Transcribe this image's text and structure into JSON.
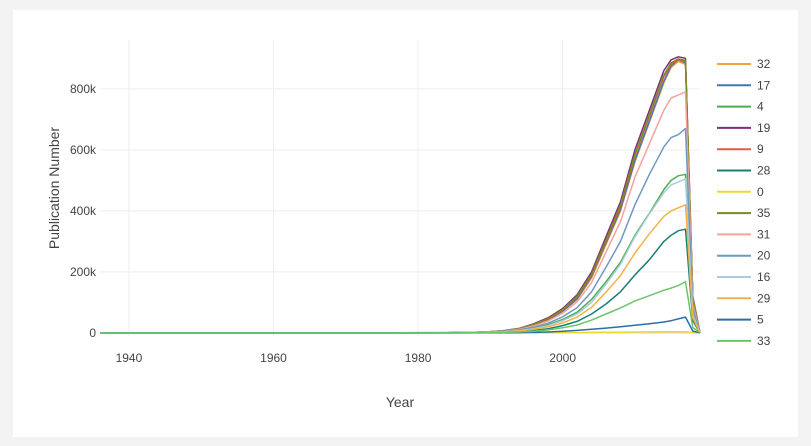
{
  "chart_data": {
    "type": "line",
    "title": "",
    "xlabel": "Year",
    "ylabel": "Publication Number",
    "xlim": [
      1936,
      2019
    ],
    "ylim": [
      -10000,
      960000
    ],
    "x_ticks": [
      1940,
      1960,
      1980,
      2000
    ],
    "y_ticks": [
      0,
      200000,
      400000,
      600000,
      800000
    ],
    "y_tick_labels": [
      "0",
      "200k",
      "400k",
      "600k",
      "800k"
    ],
    "grid": true,
    "legend_position": "right",
    "x": [
      1936,
      1950,
      1970,
      1984,
      1988,
      1990,
      1992,
      1994,
      1996,
      1998,
      2000,
      2002,
      2004,
      2006,
      2008,
      2010,
      2012,
      2014,
      2015,
      2016,
      2017,
      2018,
      2019
    ],
    "series": [
      {
        "name": "32",
        "color": "#f2a23a",
        "values": [
          0,
          0,
          0,
          900,
          2000,
          4000,
          7000,
          13000,
          25000,
          42000,
          70000,
          110000,
          180000,
          290000,
          400000,
          560000,
          690000,
          820000,
          870000,
          890000,
          880000,
          110000,
          0
        ]
      },
      {
        "name": "17",
        "color": "#3f78b4",
        "values": [
          0,
          0,
          0,
          900,
          2000,
          4000,
          7000,
          13000,
          26000,
          43000,
          72000,
          112000,
          185000,
          295000,
          405000,
          565000,
          695000,
          825000,
          875000,
          895000,
          885000,
          105000,
          0
        ]
      },
      {
        "name": "4",
        "color": "#4fae50",
        "values": [
          0,
          0,
          0,
          600,
          1300,
          2800,
          5000,
          9000,
          16000,
          27000,
          44000,
          68000,
          110000,
          168000,
          232000,
          320000,
          392000,
          470000,
          500000,
          515000,
          520000,
          60000,
          0
        ]
      },
      {
        "name": "19",
        "color": "#7b2e7f",
        "values": [
          0,
          0,
          0,
          1000,
          2300,
          4500,
          8000,
          15000,
          30000,
          50000,
          80000,
          125000,
          200000,
          315000,
          430000,
          600000,
          730000,
          860000,
          895000,
          905000,
          900000,
          120000,
          0
        ]
      },
      {
        "name": "9",
        "color": "#e15a4a",
        "values": [
          0,
          0,
          0,
          900,
          2100,
          4200,
          7500,
          14000,
          27000,
          45000,
          75000,
          118000,
          190000,
          300000,
          415000,
          580000,
          710000,
          840000,
          880000,
          895000,
          890000,
          112000,
          0
        ]
      },
      {
        "name": "28",
        "color": "#1a7f72",
        "values": [
          0,
          0,
          0,
          300,
          700,
          1500,
          2600,
          4500,
          8000,
          14000,
          24000,
          38000,
          62000,
          95000,
          135000,
          190000,
          240000,
          300000,
          320000,
          335000,
          340000,
          40000,
          0
        ]
      },
      {
        "name": "0",
        "color": "#eed92a",
        "values": [
          0,
          0,
          0,
          20,
          50,
          100,
          200,
          300,
          500,
          700,
          1000,
          1300,
          1700,
          2100,
          2500,
          3000,
          3400,
          3800,
          4000,
          4100,
          4200,
          600,
          0
        ]
      },
      {
        "name": "35",
        "color": "#7e8b1a",
        "values": [
          0,
          0,
          0,
          950,
          2200,
          4300,
          7800,
          14500,
          28000,
          47000,
          77000,
          120000,
          193000,
          305000,
          420000,
          585000,
          715000,
          845000,
          885000,
          898000,
          893000,
          115000,
          0
        ]
      },
      {
        "name": "31",
        "color": "#f3a49c",
        "values": [
          0,
          0,
          0,
          800,
          1800,
          3600,
          6500,
          12000,
          23000,
          39000,
          65000,
          102000,
          165000,
          265000,
          365000,
          510000,
          620000,
          730000,
          770000,
          780000,
          790000,
          95000,
          0
        ]
      },
      {
        "name": "20",
        "color": "#6f98c6",
        "values": [
          0,
          0,
          0,
          650,
          1500,
          3000,
          5500,
          10000,
          19000,
          32000,
          53000,
          83000,
          135000,
          215000,
          300000,
          420000,
          520000,
          610000,
          640000,
          650000,
          670000,
          80000,
          0
        ]
      },
      {
        "name": "16",
        "color": "#a9cbe3",
        "values": [
          0,
          0,
          0,
          500,
          1100,
          2300,
          4000,
          7500,
          14000,
          24000,
          40000,
          62000,
          100000,
          160000,
          225000,
          315000,
          390000,
          460000,
          485000,
          495000,
          505000,
          58000,
          0
        ]
      },
      {
        "name": "29",
        "color": "#f5b24a",
        "values": [
          0,
          0,
          0,
          450,
          1000,
          2000,
          3500,
          6500,
          12000,
          20000,
          33000,
          52000,
          84000,
          134000,
          188000,
          262000,
          325000,
          382000,
          400000,
          410000,
          420000,
          50000,
          0
        ]
      },
      {
        "name": "5",
        "color": "#2c6ea8",
        "values": [
          0,
          0,
          0,
          60,
          140,
          300,
          550,
          1000,
          1900,
          3200,
          5300,
          8200,
          12000,
          16000,
          20000,
          25000,
          30000,
          36000,
          40000,
          46000,
          52000,
          6000,
          0
        ]
      },
      {
        "name": "33",
        "color": "#6cc56a",
        "values": [
          0,
          0,
          0,
          200,
          450,
          900,
          1700,
          3100,
          5800,
          10000,
          17000,
          26000,
          42000,
          62000,
          82000,
          105000,
          122000,
          140000,
          147000,
          155000,
          168000,
          18000,
          0
        ]
      }
    ]
  }
}
